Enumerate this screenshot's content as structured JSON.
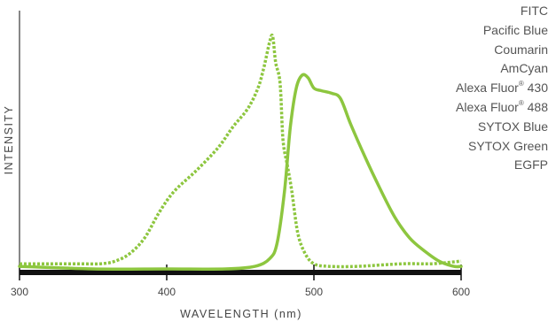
{
  "chart_data": {
    "type": "line",
    "xlabel": "WAVELENGTH (nm)",
    "ylabel": "INTENSITY",
    "xlim": [
      300,
      600
    ],
    "ylim": [
      0,
      1
    ],
    "x_ticks": [
      "300",
      "400",
      "500",
      "600"
    ],
    "grid": false,
    "legend_position": "top-right",
    "legend": [
      {
        "text": "FITC"
      },
      {
        "text": "Pacific Blue"
      },
      {
        "text": "Coumarin"
      },
      {
        "text": "AmCyan"
      },
      {
        "text": "Alexa Fluor",
        "sup": "®",
        "suffix": " 430"
      },
      {
        "text": "Alexa Fluor",
        "sup": "®",
        "suffix": " 488"
      },
      {
        "text": "SYTOX Blue"
      },
      {
        "text": "SYTOX Green"
      },
      {
        "text": "EGFP"
      }
    ],
    "series": [
      {
        "style": "dotted",
        "color": "#8dc63f",
        "points": [
          [
            300,
            0.02
          ],
          [
            320,
            0.02
          ],
          [
            340,
            0.02
          ],
          [
            355,
            0.02
          ],
          [
            365,
            0.03
          ],
          [
            375,
            0.06
          ],
          [
            385,
            0.12
          ],
          [
            395,
            0.22
          ],
          [
            405,
            0.3
          ],
          [
            420,
            0.38
          ],
          [
            435,
            0.47
          ],
          [
            445,
            0.55
          ],
          [
            455,
            0.62
          ],
          [
            462,
            0.7
          ],
          [
            466,
            0.78
          ],
          [
            470,
            0.88
          ],
          [
            472,
            0.9
          ],
          [
            474,
            0.8
          ],
          [
            477,
            0.72
          ],
          [
            479,
            0.5
          ],
          [
            482,
            0.4
          ],
          [
            485,
            0.3
          ],
          [
            489,
            0.14
          ],
          [
            494,
            0.06
          ],
          [
            500,
            0.02
          ],
          [
            510,
            0.01
          ],
          [
            530,
            0.01
          ],
          [
            560,
            0.02
          ],
          [
            580,
            0.02
          ],
          [
            600,
            0.03
          ]
        ]
      },
      {
        "style": "solid",
        "color": "#8dc63f",
        "points": [
          [
            300,
            0.01
          ],
          [
            350,
            0.0
          ],
          [
            400,
            0.0
          ],
          [
            440,
            0.0
          ],
          [
            460,
            0.01
          ],
          [
            470,
            0.04
          ],
          [
            475,
            0.1
          ],
          [
            480,
            0.3
          ],
          [
            484,
            0.55
          ],
          [
            488,
            0.7
          ],
          [
            492,
            0.75
          ],
          [
            496,
            0.74
          ],
          [
            500,
            0.7
          ],
          [
            505,
            0.69
          ],
          [
            512,
            0.68
          ],
          [
            518,
            0.66
          ],
          [
            525,
            0.56
          ],
          [
            535,
            0.43
          ],
          [
            545,
            0.31
          ],
          [
            555,
            0.2
          ],
          [
            565,
            0.12
          ],
          [
            575,
            0.07
          ],
          [
            585,
            0.03
          ],
          [
            595,
            0.01
          ],
          [
            600,
            0.01
          ]
        ]
      }
    ]
  }
}
